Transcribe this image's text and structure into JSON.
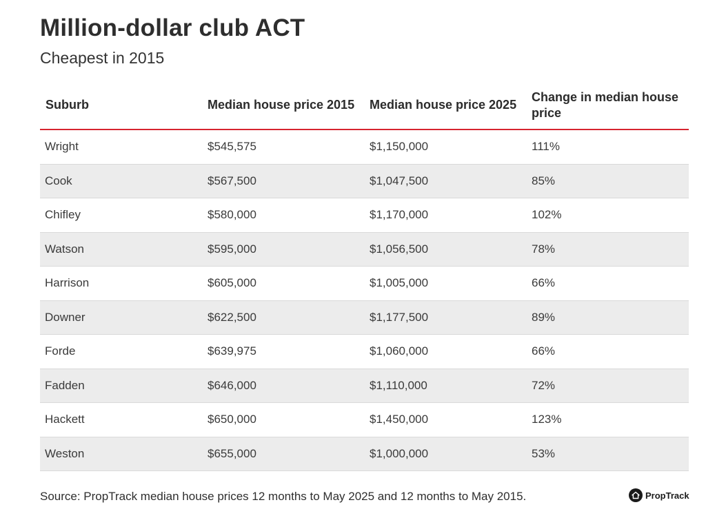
{
  "header": {
    "title": "Million-dollar club ACT",
    "subtitle": "Cheapest in 2015"
  },
  "chart_data": {
    "type": "table",
    "title": "Million-dollar club ACT",
    "subtitle": "Cheapest in 2015",
    "columns": [
      "Suburb",
      "Median house price 2015",
      "Median house price 2025",
      "Change in median house price"
    ],
    "rows": [
      [
        "Wright",
        "$545,575",
        "$1,150,000",
        "111%"
      ],
      [
        "Cook",
        "$567,500",
        "$1,047,500",
        "85%"
      ],
      [
        "Chifley",
        "$580,000",
        "$1,170,000",
        "102%"
      ],
      [
        "Watson",
        "$595,000",
        "$1,056,500",
        "78%"
      ],
      [
        "Harrison",
        "$605,000",
        "$1,005,000",
        "66%"
      ],
      [
        "Downer",
        "$622,500",
        "$1,177,500",
        "89%"
      ],
      [
        "Forde",
        "$639,975",
        "$1,060,000",
        "66%"
      ],
      [
        "Fadden",
        "$646,000",
        "$1,110,000",
        "72%"
      ],
      [
        "Hackett",
        "$650,000",
        "$1,450,000",
        "123%"
      ],
      [
        "Weston",
        "$655,000",
        "$1,000,000",
        "53%"
      ]
    ]
  },
  "footer": {
    "source": "Source: PropTrack median house prices 12 months to May 2025 and 12 months to May 2015.",
    "logo_text": "PropTrack",
    "logo_icon": "house-icon"
  },
  "colors": {
    "header_rule": "#d6232f",
    "alt_row": "#ececec"
  }
}
